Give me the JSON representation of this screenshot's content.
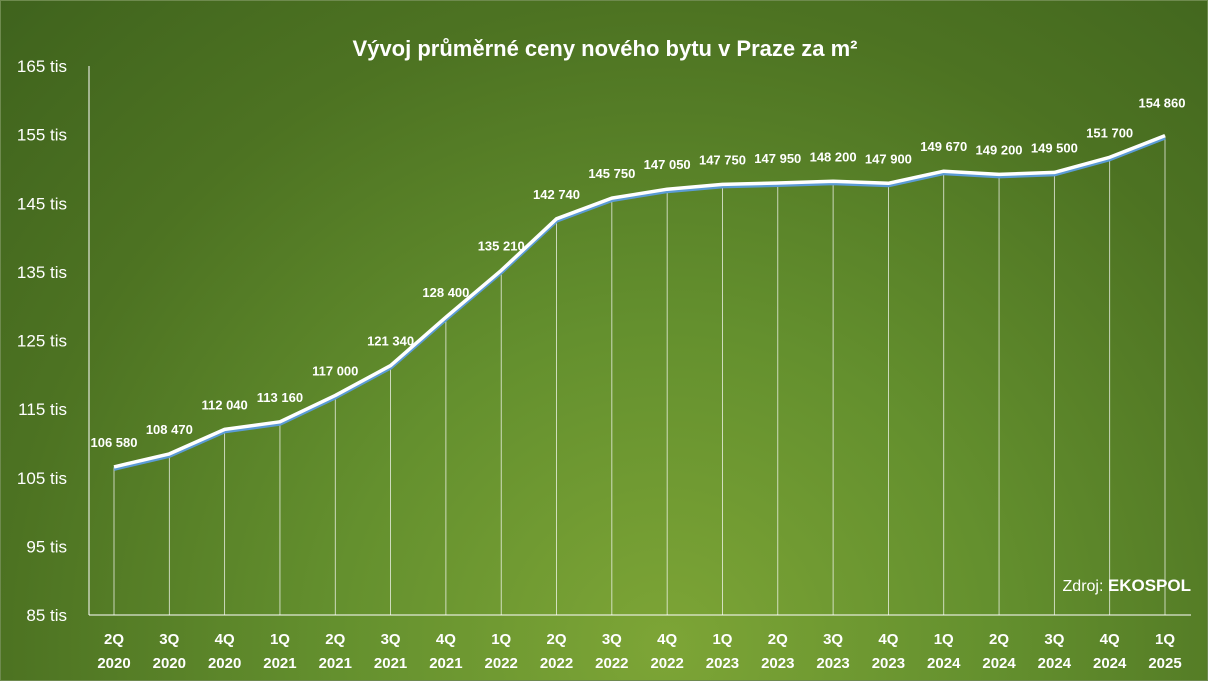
{
  "chart_data": {
    "type": "line",
    "title": "Vývoj průměrné ceny nového bytu v Praze za m²",
    "categories": [
      [
        "2Q",
        "2020"
      ],
      [
        "3Q",
        "2020"
      ],
      [
        "4Q",
        "2020"
      ],
      [
        "1Q",
        "2021"
      ],
      [
        "2Q",
        "2021"
      ],
      [
        "3Q",
        "2021"
      ],
      [
        "4Q",
        "2021"
      ],
      [
        "1Q",
        "2022"
      ],
      [
        "2Q",
        "2022"
      ],
      [
        "3Q",
        "2022"
      ],
      [
        "4Q",
        "2022"
      ],
      [
        "1Q",
        "2023"
      ],
      [
        "2Q",
        "2023"
      ],
      [
        "3Q",
        "2023"
      ],
      [
        "4Q",
        "2023"
      ],
      [
        "1Q",
        "2024"
      ],
      [
        "2Q",
        "2024"
      ],
      [
        "3Q",
        "2024"
      ],
      [
        "4Q",
        "2024"
      ],
      [
        "1Q",
        "2025"
      ]
    ],
    "values": [
      106580,
      108470,
      112040,
      113160,
      117000,
      121340,
      128400,
      135210,
      142740,
      145750,
      147050,
      147750,
      147950,
      148200,
      147900,
      149670,
      149200,
      149500,
      151700,
      154860
    ],
    "data_labels": [
      "106 580",
      "108 470",
      "112 040",
      "113 160",
      "117 000",
      "121 340",
      "128 400",
      "135 210",
      "142 740",
      "145 750",
      "147 050",
      "147 750",
      "147 950",
      "148 200",
      "147 900",
      "149 670",
      "149 200",
      "149 500",
      "151 700",
      "154 860"
    ],
    "ylim": [
      85000,
      165000
    ],
    "yticks": [
      85000,
      95000,
      105000,
      115000,
      125000,
      135000,
      145000,
      155000,
      165000
    ],
    "ytick_labels": [
      "85 tis",
      "95 tis",
      "105 tis",
      "115 tis",
      "125 tis",
      "135 tis",
      "145 tis",
      "155 tis",
      "165 tis"
    ],
    "xlabel": "",
    "ylabel": "",
    "grid": false,
    "drop_lines": true,
    "legend": "none",
    "colors": {
      "line": "#ffffff",
      "line_shadow": "#5b9bd5",
      "drop_line": "#ffffff",
      "background": "#5a8a2a"
    }
  },
  "source": {
    "prefix": "Zdroj: ",
    "brand": "EKOSPOL"
  }
}
